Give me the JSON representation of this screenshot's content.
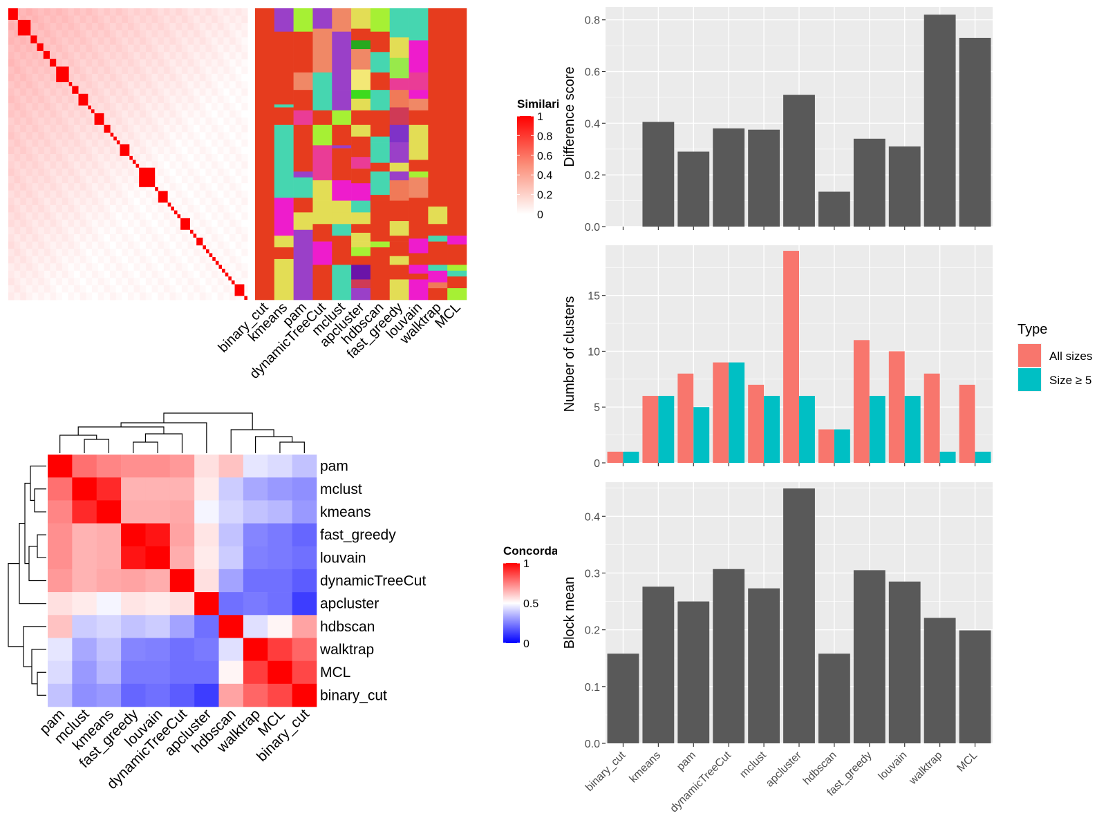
{
  "colors": {
    "panel_bg": "#ebebeb",
    "grid": "#ffffff",
    "bar_dark": "#595959",
    "all_sizes": "#f8766d",
    "size_ge5": "#00bfc4",
    "heat_high": "#ff0000",
    "heat_mid": "#ffffff",
    "heat_low": "#0000ff",
    "cluster_palette": [
      "#e63c1e",
      "#9a40c8",
      "#a6f034",
      "#46d6b0",
      "#f08866",
      "#e3dd55",
      "#ee1ccc",
      "#ea3c96",
      "#27a91f",
      "#3dda1e",
      "#f3e876",
      "#7f32c8",
      "#6a14a8",
      "#cf3a56",
      "#98e94b",
      "#f07a58"
    ]
  },
  "similarity_legend": {
    "title": "Similarity",
    "ticks": [
      "1",
      "0.8",
      "0.6",
      "0.4",
      "0.2",
      "0"
    ]
  },
  "concordance_legend": {
    "title": "Concordance",
    "ticks": [
      "1",
      "0.5",
      "0"
    ]
  },
  "chart_data": [
    {
      "type": "heatmap",
      "name": "consensus-similarity-with-class-annotation",
      "methods": [
        "binary_cut",
        "kmeans",
        "pam",
        "dynamicTreeCut",
        "mclust",
        "apcluster",
        "hdbscan",
        "fast_greedy",
        "louvain",
        "walktrap",
        "MCL"
      ],
      "colorbar_title": "Similarity",
      "colorbar_range": [
        0,
        1
      ],
      "diagonal_blocks_note_values": [
        3,
        4,
        2,
        2,
        2,
        2,
        4,
        1,
        2,
        3,
        1,
        1,
        3,
        2,
        1,
        1,
        1,
        3,
        1,
        1,
        1,
        5,
        1,
        3,
        1,
        1,
        1,
        1,
        3,
        1,
        1,
        2,
        1,
        1,
        1,
        1,
        1,
        1,
        1,
        1,
        1,
        1,
        3,
        1
      ]
    },
    {
      "type": "heatmap",
      "name": "method-concordance",
      "rows": [
        "pam",
        "mclust",
        "kmeans",
        "fast_greedy",
        "louvain",
        "dynamicTreeCut",
        "apcluster",
        "hdbscan",
        "walktrap",
        "MCL",
        "binary_cut"
      ],
      "cols": [
        "pam",
        "mclust",
        "kmeans",
        "fast_greedy",
        "louvain",
        "dynamicTreeCut",
        "apcluster",
        "hdbscan",
        "walktrap",
        "MCL",
        "binary_cut"
      ],
      "values": [
        [
          1.0,
          0.78,
          0.74,
          0.72,
          0.72,
          0.7,
          0.56,
          0.62,
          0.45,
          0.43,
          0.38
        ],
        [
          0.78,
          1.0,
          0.92,
          0.65,
          0.65,
          0.65,
          0.54,
          0.4,
          0.33,
          0.3,
          0.28
        ],
        [
          0.74,
          0.92,
          1.0,
          0.66,
          0.66,
          0.67,
          0.48,
          0.42,
          0.38,
          0.36,
          0.3
        ],
        [
          0.72,
          0.65,
          0.66,
          1.0,
          0.96,
          0.68,
          0.55,
          0.38,
          0.26,
          0.24,
          0.2
        ],
        [
          0.72,
          0.65,
          0.66,
          0.96,
          1.0,
          0.66,
          0.54,
          0.4,
          0.25,
          0.24,
          0.22
        ],
        [
          0.7,
          0.65,
          0.67,
          0.68,
          0.66,
          1.0,
          0.56,
          0.32,
          0.22,
          0.22,
          0.18
        ],
        [
          0.56,
          0.54,
          0.48,
          0.55,
          0.54,
          0.56,
          1.0,
          0.22,
          0.24,
          0.22,
          0.12
        ],
        [
          0.62,
          0.4,
          0.42,
          0.38,
          0.4,
          0.32,
          0.22,
          1.0,
          0.44,
          0.52,
          0.68
        ],
        [
          0.45,
          0.33,
          0.38,
          0.26,
          0.25,
          0.22,
          0.24,
          0.44,
          1.0,
          0.88,
          0.8
        ],
        [
          0.43,
          0.3,
          0.36,
          0.24,
          0.24,
          0.22,
          0.22,
          0.52,
          0.88,
          1.0,
          0.86
        ],
        [
          0.38,
          0.28,
          0.3,
          0.2,
          0.22,
          0.18,
          0.12,
          0.68,
          0.8,
          0.86,
          1.0
        ]
      ],
      "colorbar_title": "Concordance",
      "colorbar_range": [
        0,
        1
      ],
      "colorbar_mid": 0.5
    },
    {
      "type": "bar",
      "name": "difference-score",
      "categories": [
        "binary_cut",
        "kmeans",
        "pam",
        "dynamicTreeCut",
        "mclust",
        "apcluster",
        "hdbscan",
        "fast_greedy",
        "louvain",
        "walktrap",
        "MCL"
      ],
      "values": [
        0.0,
        0.405,
        0.29,
        0.38,
        0.375,
        0.51,
        0.135,
        0.34,
        0.31,
        0.82,
        0.73
      ],
      "ylabel": "Difference score",
      "ylim": [
        0,
        0.85
      ],
      "yticks": [
        "0.0",
        "0.2",
        "0.4",
        "0.6",
        "0.8"
      ],
      "grid": true
    },
    {
      "type": "bar",
      "name": "number-of-clusters",
      "categories": [
        "binary_cut",
        "kmeans",
        "pam",
        "dynamicTreeCut",
        "mclust",
        "apcluster",
        "hdbscan",
        "fast_greedy",
        "louvain",
        "walktrap",
        "MCL"
      ],
      "series": [
        {
          "name": "All sizes",
          "values": [
            1,
            6,
            8,
            9,
            7,
            19,
            3,
            11,
            10,
            8,
            7
          ]
        },
        {
          "name": "Size ≥ 5",
          "values": [
            1,
            6,
            5,
            9,
            6,
            6,
            3,
            6,
            6,
            1,
            1
          ]
        }
      ],
      "ylabel": "Number of clusters",
      "ylim": [
        0,
        19.5
      ],
      "yticks": [
        "0",
        "5",
        "10",
        "15"
      ],
      "legend": {
        "title": "Type",
        "placement": "right"
      },
      "grid": true
    },
    {
      "type": "bar",
      "name": "block-mean",
      "categories": [
        "binary_cut",
        "kmeans",
        "pam",
        "dynamicTreeCut",
        "mclust",
        "apcluster",
        "hdbscan",
        "fast_greedy",
        "louvain",
        "walktrap",
        "MCL"
      ],
      "values": [
        0.158,
        0.276,
        0.25,
        0.307,
        0.273,
        0.449,
        0.158,
        0.305,
        0.285,
        0.221,
        0.199
      ],
      "ylabel": "Block mean",
      "ylim": [
        0,
        0.46
      ],
      "yticks": [
        "0.0",
        "0.1",
        "0.2",
        "0.3",
        "0.4"
      ],
      "grid": true
    }
  ],
  "annotation_classes": [
    {
      "method": "binary_cut",
      "segments": [
        [
          0,
          1.0,
          0
        ]
      ]
    },
    {
      "method": "kmeans",
      "segments": [
        [
          0,
          0.08,
          1
        ],
        [
          0.08,
          0.33,
          0
        ],
        [
          0.33,
          0.34,
          3
        ],
        [
          0.34,
          0.4,
          0
        ],
        [
          0.4,
          0.65,
          3
        ],
        [
          0.65,
          0.78,
          6
        ],
        [
          0.78,
          0.82,
          5
        ],
        [
          0.82,
          0.86,
          0
        ],
        [
          0.86,
          0.88,
          5
        ],
        [
          0.88,
          1.0,
          5
        ]
      ]
    },
    {
      "method": "pam",
      "segments": [
        [
          0,
          0.08,
          2
        ],
        [
          0.08,
          0.22,
          0
        ],
        [
          0.22,
          0.28,
          4
        ],
        [
          0.28,
          0.35,
          0
        ],
        [
          0.35,
          0.4,
          7
        ],
        [
          0.4,
          0.56,
          0
        ],
        [
          0.56,
          0.58,
          1
        ],
        [
          0.58,
          0.65,
          3
        ],
        [
          0.65,
          0.7,
          0
        ],
        [
          0.7,
          0.76,
          5
        ],
        [
          0.76,
          1.0,
          1
        ]
      ]
    },
    {
      "method": "dynamicTreeCut",
      "segments": [
        [
          0,
          0.07,
          1
        ],
        [
          0.07,
          0.22,
          4
        ],
        [
          0.22,
          0.35,
          3
        ],
        [
          0.35,
          0.4,
          0
        ],
        [
          0.4,
          0.47,
          2
        ],
        [
          0.47,
          0.59,
          7
        ],
        [
          0.59,
          0.66,
          5
        ],
        [
          0.66,
          0.74,
          5
        ],
        [
          0.74,
          0.8,
          0
        ],
        [
          0.8,
          0.88,
          6
        ],
        [
          0.88,
          0.93,
          0
        ],
        [
          0.93,
          1.0,
          0
        ]
      ]
    },
    {
      "method": "mclust",
      "segments": [
        [
          0,
          0.08,
          4
        ],
        [
          0.08,
          0.28,
          1
        ],
        [
          0.28,
          0.35,
          1
        ],
        [
          0.35,
          0.4,
          2
        ],
        [
          0.4,
          0.47,
          0
        ],
        [
          0.47,
          0.48,
          1
        ],
        [
          0.48,
          0.59,
          0
        ],
        [
          0.59,
          0.66,
          6
        ],
        [
          0.66,
          0.7,
          5
        ],
        [
          0.7,
          0.74,
          5
        ],
        [
          0.74,
          0.78,
          3
        ],
        [
          0.78,
          0.88,
          0
        ],
        [
          0.88,
          1.0,
          3
        ]
      ]
    },
    {
      "method": "apcluster",
      "segments": [
        [
          0,
          0.07,
          5
        ],
        [
          0.07,
          0.11,
          0
        ],
        [
          0.11,
          0.14,
          8
        ],
        [
          0.14,
          0.21,
          4
        ],
        [
          0.21,
          0.28,
          10
        ],
        [
          0.28,
          0.31,
          9
        ],
        [
          0.31,
          0.35,
          5
        ],
        [
          0.35,
          0.4,
          0
        ],
        [
          0.4,
          0.44,
          5
        ],
        [
          0.44,
          0.47,
          0
        ],
        [
          0.47,
          0.51,
          0
        ],
        [
          0.51,
          0.55,
          7
        ],
        [
          0.55,
          0.6,
          0
        ],
        [
          0.6,
          0.66,
          6
        ],
        [
          0.66,
          0.7,
          3
        ],
        [
          0.7,
          0.74,
          5
        ],
        [
          0.74,
          0.77,
          0
        ],
        [
          0.77,
          0.8,
          5
        ],
        [
          0.8,
          0.82,
          5
        ],
        [
          0.82,
          0.85,
          2
        ],
        [
          0.85,
          0.88,
          0
        ],
        [
          0.88,
          0.93,
          12
        ],
        [
          0.93,
          0.96,
          13
        ],
        [
          0.96,
          1.0,
          1
        ]
      ]
    },
    {
      "method": "hdbscan",
      "segments": [
        [
          0,
          0.08,
          2
        ],
        [
          0.08,
          0.15,
          0
        ],
        [
          0.15,
          0.22,
          3
        ],
        [
          0.22,
          0.28,
          0
        ],
        [
          0.28,
          0.35,
          3
        ],
        [
          0.35,
          0.44,
          0
        ],
        [
          0.44,
          0.46,
          3
        ],
        [
          0.46,
          0.53,
          3
        ],
        [
          0.53,
          0.56,
          0
        ],
        [
          0.56,
          0.64,
          3
        ],
        [
          0.64,
          0.66,
          0
        ],
        [
          0.66,
          0.8,
          0
        ],
        [
          0.8,
          0.82,
          2
        ],
        [
          0.82,
          1.0,
          0
        ]
      ]
    },
    {
      "method": "fast_greedy",
      "segments": [
        [
          0,
          0.1,
          3
        ],
        [
          0.1,
          0.17,
          5
        ],
        [
          0.17,
          0.24,
          14
        ],
        [
          0.24,
          0.28,
          7
        ],
        [
          0.28,
          0.34,
          15
        ],
        [
          0.34,
          0.4,
          13
        ],
        [
          0.4,
          0.46,
          11
        ],
        [
          0.46,
          0.53,
          1
        ],
        [
          0.53,
          0.56,
          5
        ],
        [
          0.56,
          0.59,
          1
        ],
        [
          0.59,
          0.66,
          15
        ],
        [
          0.66,
          0.73,
          0
        ],
        [
          0.73,
          0.78,
          5
        ],
        [
          0.78,
          0.8,
          0
        ],
        [
          0.8,
          0.85,
          0
        ],
        [
          0.85,
          0.88,
          5
        ],
        [
          0.88,
          0.91,
          0
        ],
        [
          0.91,
          0.93,
          0
        ],
        [
          0.93,
          1.0,
          5
        ]
      ]
    },
    {
      "method": "louvain",
      "segments": [
        [
          0,
          0.11,
          3
        ],
        [
          0.11,
          0.22,
          6
        ],
        [
          0.22,
          0.28,
          7
        ],
        [
          0.28,
          0.31,
          6
        ],
        [
          0.31,
          0.35,
          4
        ],
        [
          0.35,
          0.4,
          0
        ],
        [
          0.4,
          0.52,
          5
        ],
        [
          0.52,
          0.56,
          0
        ],
        [
          0.56,
          0.58,
          2
        ],
        [
          0.58,
          0.65,
          4
        ],
        [
          0.65,
          0.79,
          0
        ],
        [
          0.79,
          0.84,
          6
        ],
        [
          0.84,
          0.88,
          0
        ],
        [
          0.88,
          0.91,
          6
        ],
        [
          0.91,
          0.93,
          0
        ],
        [
          0.93,
          1.0,
          6
        ]
      ]
    },
    {
      "method": "walktrap",
      "segments": [
        [
          0,
          0.68,
          0
        ],
        [
          0.68,
          0.74,
          5
        ],
        [
          0.74,
          0.78,
          0
        ],
        [
          0.78,
          0.8,
          3
        ],
        [
          0.8,
          0.88,
          0
        ],
        [
          0.88,
          0.9,
          3
        ],
        [
          0.9,
          0.92,
          6
        ],
        [
          0.92,
          0.94,
          6
        ],
        [
          0.94,
          0.96,
          15
        ],
        [
          0.96,
          1.0,
          0
        ]
      ]
    },
    {
      "method": "MCL",
      "segments": [
        [
          0,
          0.78,
          0
        ],
        [
          0.78,
          0.81,
          6
        ],
        [
          0.81,
          0.88,
          0
        ],
        [
          0.88,
          0.9,
          2
        ],
        [
          0.9,
          0.92,
          3
        ],
        [
          0.92,
          0.96,
          0
        ],
        [
          0.96,
          1.0,
          2
        ]
      ]
    }
  ]
}
